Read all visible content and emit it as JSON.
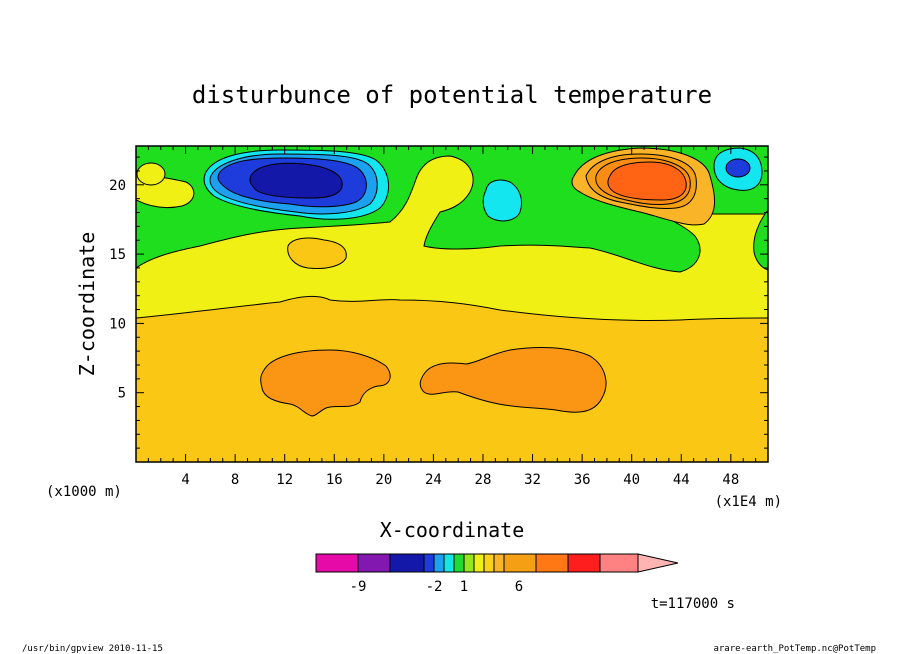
{
  "chart_data": {
    "type": "heatmap",
    "title": "disturbunce of potential temperature",
    "xlabel": "X-coordinate",
    "ylabel": "Z-coordinate",
    "x_unit_left": "(x1000 m)",
    "x_unit_right": "(x1E4 m)",
    "x_ticks": [
      "4",
      "8",
      "12",
      "16",
      "20",
      "24",
      "28",
      "32",
      "36",
      "40",
      "44",
      "48"
    ],
    "x_tick_values": [
      4,
      8,
      12,
      16,
      20,
      24,
      28,
      32,
      36,
      40,
      44,
      48
    ],
    "y_ticks": [
      "5",
      "10",
      "15",
      "20"
    ],
    "y_tick_values": [
      5,
      10,
      15,
      20
    ],
    "xlim": [
      0,
      51
    ],
    "ylim": [
      0,
      22.8
    ],
    "colorbar": {
      "colors": [
        "#e60aa8",
        "#8218b0",
        "#1418a8",
        "#1e3cdc",
        "#1ea0f0",
        "#14e6e6",
        "#1edc32",
        "#96e61e",
        "#f0f014",
        "#fad21e",
        "#fab428",
        "#f5a014",
        "#ff7814",
        "#ff1e1e",
        "#ff8282",
        "#ffb4b4"
      ],
      "tick_labels": [
        "-9",
        "-2",
        "1",
        "6"
      ]
    },
    "timestamp": "t=117000 s",
    "regions": [
      {
        "name": "low-level-orange-left",
        "value": "5 to 6",
        "color": "#fa9614"
      },
      {
        "name": "low-level-orange-right",
        "value": "5 to 6",
        "color": "#fa9614"
      },
      {
        "name": "upper-blue-core",
        "value": "about -9",
        "color": "#1418a8"
      },
      {
        "name": "upper-orange-core",
        "value": "about 5",
        "color": "#ff6414"
      }
    ]
  },
  "footer": {
    "left": "/usr/bin/gpview  2010-11-15",
    "right": "arare-earth_PotTemp.nc@PotTemp"
  }
}
